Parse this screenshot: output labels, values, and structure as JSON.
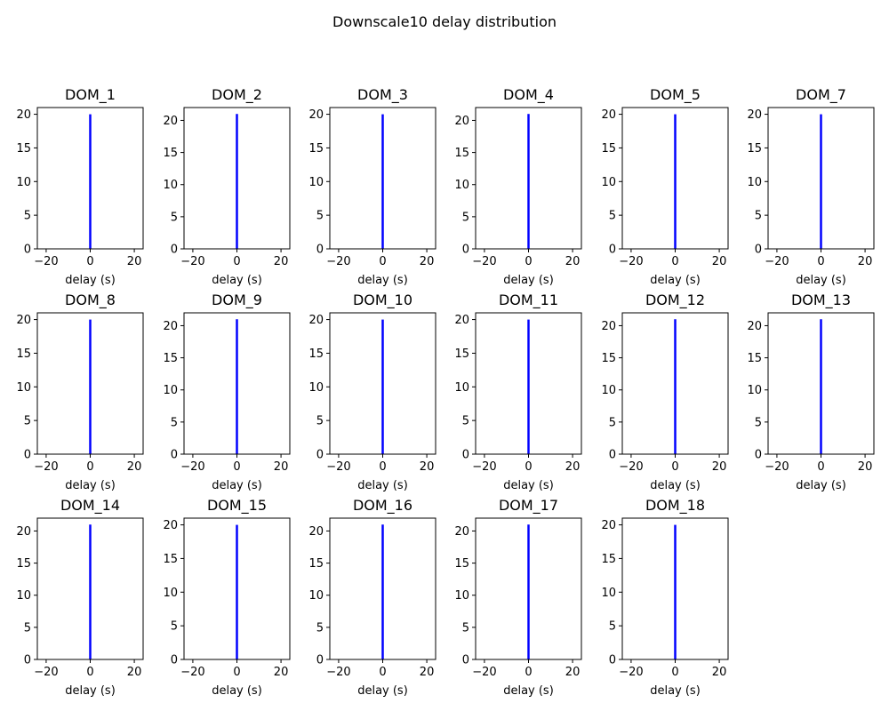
{
  "figure": {
    "suptitle": "Downscale10 delay distribution"
  },
  "chart_data": [
    {
      "type": "bar",
      "title": "DOM_1",
      "xlabel": "delay (s)",
      "ylabel": "",
      "xlim": [
        -24,
        24
      ],
      "ylim": [
        0,
        21
      ],
      "yticks": [
        0,
        5,
        10,
        15,
        20
      ],
      "xticks": [
        -20,
        0,
        20
      ],
      "bars": [
        {
          "x": 0,
          "value": 20
        }
      ],
      "color": "#0000ff"
    },
    {
      "type": "bar",
      "title": "DOM_2",
      "xlabel": "delay (s)",
      "ylabel": "",
      "xlim": [
        -24,
        24
      ],
      "ylim": [
        0,
        22
      ],
      "yticks": [
        0,
        5,
        10,
        15,
        20
      ],
      "xticks": [
        -20,
        0,
        20
      ],
      "bars": [
        {
          "x": 0,
          "value": 21
        }
      ],
      "color": "#0000ff"
    },
    {
      "type": "bar",
      "title": "DOM_3",
      "xlabel": "delay (s)",
      "ylabel": "",
      "xlim": [
        -24,
        24
      ],
      "ylim": [
        0,
        21
      ],
      "yticks": [
        0,
        5,
        10,
        15,
        20
      ],
      "xticks": [
        -20,
        0,
        20
      ],
      "bars": [
        {
          "x": 0,
          "value": 20
        }
      ],
      "color": "#0000ff"
    },
    {
      "type": "bar",
      "title": "DOM_4",
      "xlabel": "delay (s)",
      "ylabel": "",
      "xlim": [
        -24,
        24
      ],
      "ylim": [
        0,
        22
      ],
      "yticks": [
        0,
        5,
        10,
        15,
        20
      ],
      "xticks": [
        -20,
        0,
        20
      ],
      "bars": [
        {
          "x": 0,
          "value": 21
        }
      ],
      "color": "#0000ff"
    },
    {
      "type": "bar",
      "title": "DOM_5",
      "xlabel": "delay (s)",
      "ylabel": "",
      "xlim": [
        -24,
        24
      ],
      "ylim": [
        0,
        21
      ],
      "yticks": [
        0,
        5,
        10,
        15,
        20
      ],
      "xticks": [
        -20,
        0,
        20
      ],
      "bars": [
        {
          "x": 0,
          "value": 20
        }
      ],
      "color": "#0000ff"
    },
    {
      "type": "bar",
      "title": "DOM_7",
      "xlabel": "delay (s)",
      "ylabel": "",
      "xlim": [
        -24,
        24
      ],
      "ylim": [
        0,
        21
      ],
      "yticks": [
        0,
        5,
        10,
        15,
        20
      ],
      "xticks": [
        -20,
        0,
        20
      ],
      "bars": [
        {
          "x": 0,
          "value": 20
        }
      ],
      "color": "#0000ff"
    },
    {
      "type": "bar",
      "title": "DOM_8",
      "xlabel": "delay (s)",
      "ylabel": "",
      "xlim": [
        -24,
        24
      ],
      "ylim": [
        0,
        21
      ],
      "yticks": [
        0,
        5,
        10,
        15,
        20
      ],
      "xticks": [
        -20,
        0,
        20
      ],
      "bars": [
        {
          "x": 0,
          "value": 20
        }
      ],
      "color": "#0000ff"
    },
    {
      "type": "bar",
      "title": "DOM_9",
      "xlabel": "delay (s)",
      "ylabel": "",
      "xlim": [
        -24,
        24
      ],
      "ylim": [
        0,
        22
      ],
      "yticks": [
        0,
        5,
        10,
        15,
        20
      ],
      "xticks": [
        -20,
        0,
        20
      ],
      "bars": [
        {
          "x": 0,
          "value": 21
        }
      ],
      "color": "#0000ff"
    },
    {
      "type": "bar",
      "title": "DOM_10",
      "xlabel": "delay (s)",
      "ylabel": "",
      "xlim": [
        -24,
        24
      ],
      "ylim": [
        0,
        21
      ],
      "yticks": [
        0,
        5,
        10,
        15,
        20
      ],
      "xticks": [
        -20,
        0,
        20
      ],
      "bars": [
        {
          "x": 0,
          "value": 20
        }
      ],
      "color": "#0000ff"
    },
    {
      "type": "bar",
      "title": "DOM_11",
      "xlabel": "delay (s)",
      "ylabel": "",
      "xlim": [
        -24,
        24
      ],
      "ylim": [
        0,
        21
      ],
      "yticks": [
        0,
        5,
        10,
        15,
        20
      ],
      "xticks": [
        -20,
        0,
        20
      ],
      "bars": [
        {
          "x": 0,
          "value": 20
        }
      ],
      "color": "#0000ff"
    },
    {
      "type": "bar",
      "title": "DOM_12",
      "xlabel": "delay (s)",
      "ylabel": "",
      "xlim": [
        -24,
        24
      ],
      "ylim": [
        0,
        22
      ],
      "yticks": [
        0,
        5,
        10,
        15,
        20
      ],
      "xticks": [
        -20,
        0,
        20
      ],
      "bars": [
        {
          "x": 0,
          "value": 21
        }
      ],
      "color": "#0000ff"
    },
    {
      "type": "bar",
      "title": "DOM_13",
      "xlabel": "delay (s)",
      "ylabel": "",
      "xlim": [
        -24,
        24
      ],
      "ylim": [
        0,
        22
      ],
      "yticks": [
        0,
        5,
        10,
        15,
        20
      ],
      "xticks": [
        -20,
        0,
        20
      ],
      "bars": [
        {
          "x": 0,
          "value": 21
        }
      ],
      "color": "#0000ff"
    },
    {
      "type": "bar",
      "title": "DOM_14",
      "xlabel": "delay (s)",
      "ylabel": "",
      "xlim": [
        -24,
        24
      ],
      "ylim": [
        0,
        22
      ],
      "yticks": [
        0,
        5,
        10,
        15,
        20
      ],
      "xticks": [
        -20,
        0,
        20
      ],
      "bars": [
        {
          "x": 0,
          "value": 21
        }
      ],
      "color": "#0000ff"
    },
    {
      "type": "bar",
      "title": "DOM_15",
      "xlabel": "delay (s)",
      "ylabel": "",
      "xlim": [
        -24,
        24
      ],
      "ylim": [
        0,
        21
      ],
      "yticks": [
        0,
        5,
        10,
        15,
        20
      ],
      "xticks": [
        -20,
        0,
        20
      ],
      "bars": [
        {
          "x": 0,
          "value": 20
        }
      ],
      "color": "#0000ff"
    },
    {
      "type": "bar",
      "title": "DOM_16",
      "xlabel": "delay (s)",
      "ylabel": "",
      "xlim": [
        -24,
        24
      ],
      "ylim": [
        0,
        22
      ],
      "yticks": [
        0,
        5,
        10,
        15,
        20
      ],
      "xticks": [
        -20,
        0,
        20
      ],
      "bars": [
        {
          "x": 0,
          "value": 21
        }
      ],
      "color": "#0000ff"
    },
    {
      "type": "bar",
      "title": "DOM_17",
      "xlabel": "delay (s)",
      "ylabel": "",
      "xlim": [
        -24,
        24
      ],
      "ylim": [
        0,
        22
      ],
      "yticks": [
        0,
        5,
        10,
        15,
        20
      ],
      "xticks": [
        -20,
        0,
        20
      ],
      "bars": [
        {
          "x": 0,
          "value": 21
        }
      ],
      "color": "#0000ff"
    },
    {
      "type": "bar",
      "title": "DOM_18",
      "xlabel": "delay (s)",
      "ylabel": "",
      "xlim": [
        -24,
        24
      ],
      "ylim": [
        0,
        21
      ],
      "yticks": [
        0,
        5,
        10,
        15,
        20
      ],
      "xticks": [
        -20,
        0,
        20
      ],
      "bars": [
        {
          "x": 0,
          "value": 20
        }
      ],
      "color": "#0000ff"
    }
  ]
}
